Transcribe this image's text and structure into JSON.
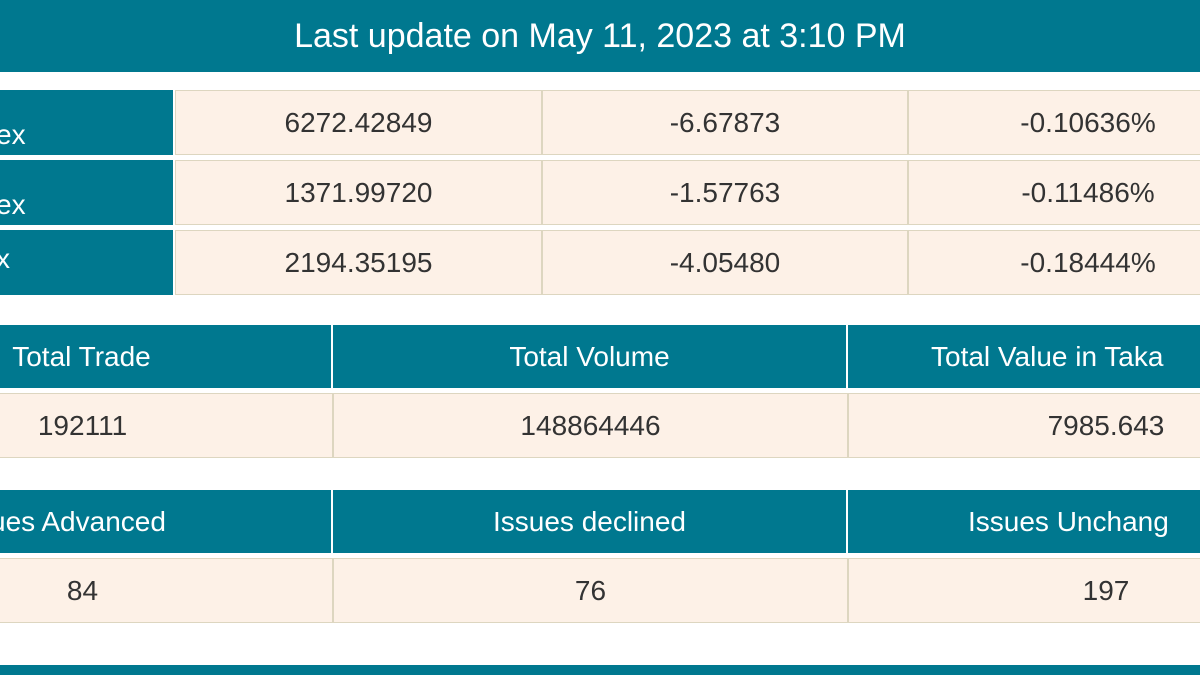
{
  "header": {
    "title": "Last update on May 11, 2023 at 3:10 PM"
  },
  "indices": {
    "rows": [
      {
        "name": "ex",
        "value": "6272.42849",
        "change": "-6.67873",
        "percent": "-0.10636%"
      },
      {
        "name": "ex",
        "value": "1371.99720",
        "change": "-1.57763",
        "percent": "-0.11486%"
      },
      {
        "name": "x",
        "value": "2194.35195",
        "change": "-4.05480",
        "percent": "-0.18444%"
      }
    ]
  },
  "summary": {
    "headers": [
      "Total Trade",
      "Total Volume",
      "Total Value in Taka"
    ],
    "values": [
      "192111",
      "148864446",
      "7985.643"
    ]
  },
  "issues": {
    "headers": [
      "ues Advanced",
      "Issues declined",
      "Issues Unchang"
    ],
    "values": [
      "84",
      "76",
      "197"
    ]
  }
}
